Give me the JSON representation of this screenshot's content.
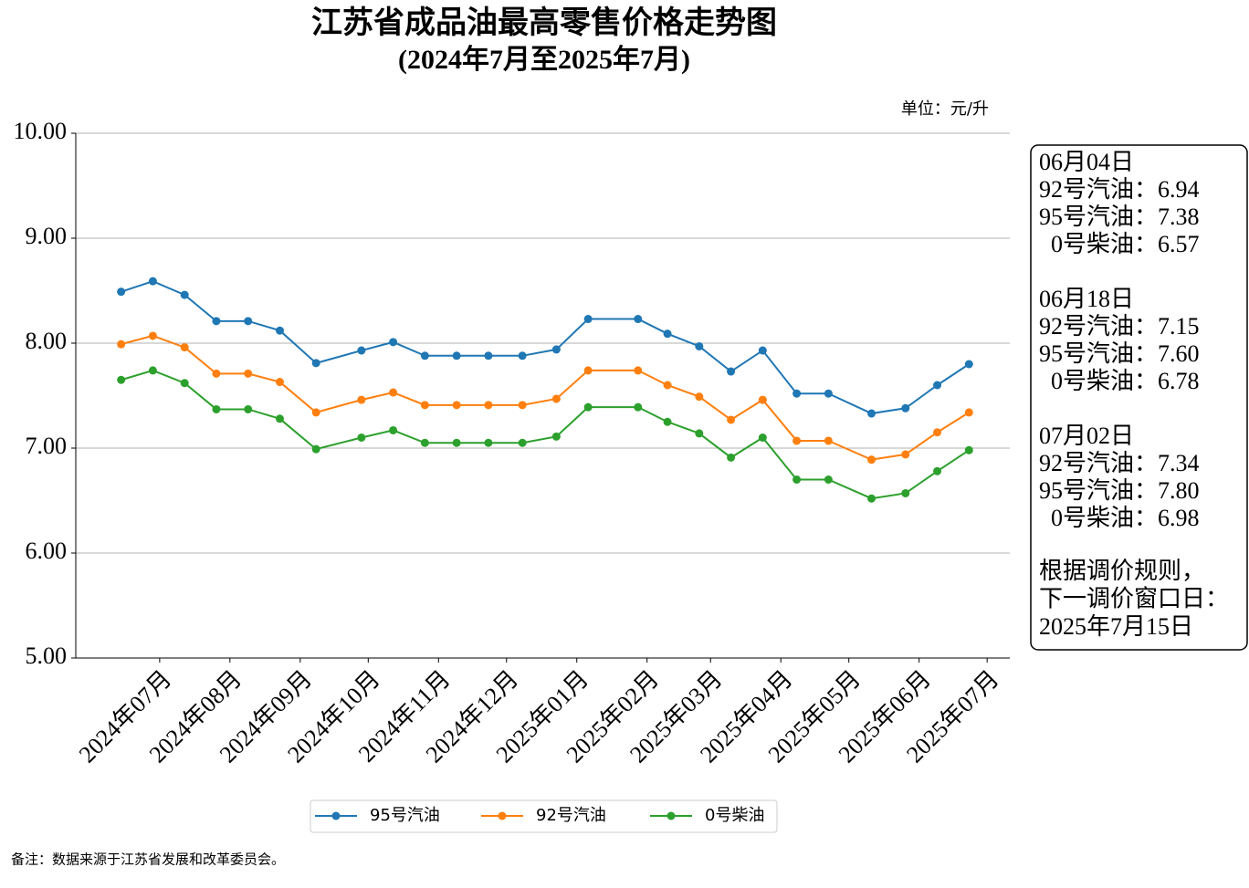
{
  "chart_data": {
    "type": "line",
    "title": "江苏省成品油最高零售价格走势图",
    "subtitle": "(2024年7月至2025年7月)",
    "unit_label": "单位：元/升",
    "footnote": "备注：数据来源于江苏省发展和改革委员会。",
    "x": [
      "2024-06-23",
      "2024-07-07",
      "2024-07-21",
      "2024-08-04",
      "2024-08-18",
      "2024-09-01",
      "2024-09-17",
      "2024-10-07",
      "2024-10-21",
      "2024-11-04",
      "2024-11-18",
      "2024-12-02",
      "2024-12-17",
      "2025-01-01",
      "2025-01-15",
      "2025-02-06",
      "2025-02-19",
      "2025-03-05",
      "2025-03-19",
      "2025-04-02",
      "2025-04-17",
      "2025-05-01",
      "2025-05-20",
      "2025-06-04",
      "2025-06-18",
      "2025-07-02"
    ],
    "series": [
      {
        "name": "95号汽油",
        "color": "#1f77b4",
        "values": [
          8.49,
          8.59,
          8.46,
          8.21,
          8.21,
          8.12,
          7.81,
          7.93,
          8.01,
          7.88,
          7.88,
          7.88,
          7.88,
          7.94,
          8.23,
          8.23,
          8.09,
          7.97,
          7.73,
          7.93,
          7.52,
          7.52,
          7.33,
          7.38,
          7.6,
          7.8
        ]
      },
      {
        "name": "92号汽油",
        "color": "#ff7f0e",
        "values": [
          7.99,
          8.07,
          7.96,
          7.71,
          7.71,
          7.63,
          7.34,
          7.46,
          7.53,
          7.41,
          7.41,
          7.41,
          7.41,
          7.47,
          7.74,
          7.74,
          7.6,
          7.49,
          7.27,
          7.46,
          7.07,
          7.07,
          6.89,
          6.94,
          7.15,
          7.34
        ]
      },
      {
        "name": "0号柴油",
        "color": "#2ca02c",
        "values": [
          7.65,
          7.74,
          7.62,
          7.37,
          7.37,
          7.28,
          6.99,
          7.1,
          7.17,
          7.05,
          7.05,
          7.05,
          7.05,
          7.11,
          7.39,
          7.39,
          7.25,
          7.14,
          6.91,
          7.1,
          6.7,
          6.7,
          6.52,
          6.57,
          6.78,
          6.98
        ]
      }
    ],
    "xlim": [
      "2024-06-03",
      "2025-07-20"
    ],
    "xticks": [
      {
        "value": "2024-07-10",
        "label": "2024年07月"
      },
      {
        "value": "2024-08-10",
        "label": "2024年08月"
      },
      {
        "value": "2024-09-10",
        "label": "2024年09月"
      },
      {
        "value": "2024-10-10",
        "label": "2024年10月"
      },
      {
        "value": "2024-11-10",
        "label": "2024年11月"
      },
      {
        "value": "2024-12-10",
        "label": "2024年12月"
      },
      {
        "value": "2025-01-10",
        "label": "2025年01月"
      },
      {
        "value": "2025-02-10",
        "label": "2025年02月"
      },
      {
        "value": "2025-03-10",
        "label": "2025年03月"
      },
      {
        "value": "2025-04-10",
        "label": "2025年04月"
      },
      {
        "value": "2025-05-10",
        "label": "2025年05月"
      },
      {
        "value": "2025-06-10",
        "label": "2025年06月"
      },
      {
        "value": "2025-07-10",
        "label": "2025年07月"
      }
    ],
    "ylim": [
      5,
      10
    ],
    "yticks": [
      {
        "value": 5,
        "label": "5.00"
      },
      {
        "value": 6,
        "label": "6.00"
      },
      {
        "value": 7,
        "label": "7.00"
      },
      {
        "value": 8,
        "label": "8.00"
      },
      {
        "value": 9,
        "label": "9.00"
      },
      {
        "value": 10,
        "label": "10.00"
      }
    ],
    "grid": true,
    "legend": "bottom",
    "annotation_groups": [
      {
        "date": "06月04日",
        "lines": [
          "92号汽油：6.94",
          "95号汽油：7.38",
          "  0号柴油：6.57"
        ]
      },
      {
        "date": "06月18日",
        "lines": [
          "92号汽油：7.15",
          "95号汽油：7.60",
          "  0号柴油：6.78"
        ]
      },
      {
        "date": "07月02日",
        "lines": [
          "92号汽油：7.34",
          "95号汽油：7.80",
          "  0号柴油：6.98"
        ]
      }
    ],
    "annotation_note": [
      "根据调价规则，",
      "下一调价窗口日：",
      "2025年7月15日"
    ]
  }
}
